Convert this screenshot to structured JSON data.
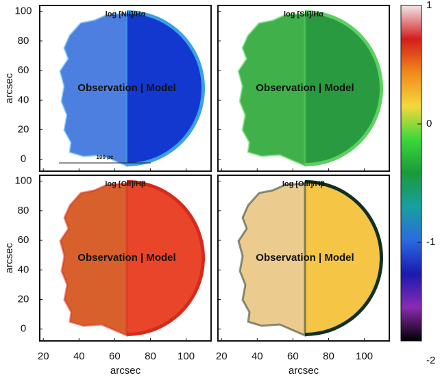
{
  "chart_data": {
    "type": "map-panels",
    "xlabel": "arcsec",
    "ylabel": "arcsec",
    "xlim": [
      18,
      114
    ],
    "xticks": [
      20,
      40,
      60,
      80,
      100
    ],
    "ylim": [
      -8,
      104
    ],
    "yticks": [
      0,
      20,
      40,
      60,
      80,
      100
    ],
    "scale_bar": "100 pc",
    "panels": [
      {
        "title": "log [NII]/Hα",
        "annotation": "Observation | Model",
        "observation_color": "#4d7fe0",
        "model_color": "#1238d0",
        "edge_color": "#3aa0e8"
      },
      {
        "title": "log [SII]/Hα",
        "annotation": "Observation | Model",
        "observation_color": "#3fb04a",
        "model_color": "#2a9a40",
        "edge_color": "#5cd060"
      },
      {
        "title": "log [OII]/Hβ",
        "annotation": "Observation | Model",
        "observation_color": "#d8602c",
        "model_color": "#e8452a",
        "edge_color": "#d82a1a"
      },
      {
        "title": "log [OIII]/Hβ",
        "annotation": "Observation | Model",
        "observation_color": "#eccb8e",
        "model_color": "#f5c545",
        "edge_color": "#103020"
      }
    ],
    "colorbar": {
      "lim": [
        -2,
        1
      ],
      "ticks": [
        1,
        0,
        -1,
        -2
      ],
      "colormap": [
        "#f2e6ea",
        "#d41c1c",
        "#f08a1c",
        "#f5d83c",
        "#3ad83a",
        "#1a9a3a",
        "#18a0a0",
        "#2a6ae0",
        "#1a1ab0",
        "#8a2ab0",
        "#000000"
      ]
    }
  }
}
